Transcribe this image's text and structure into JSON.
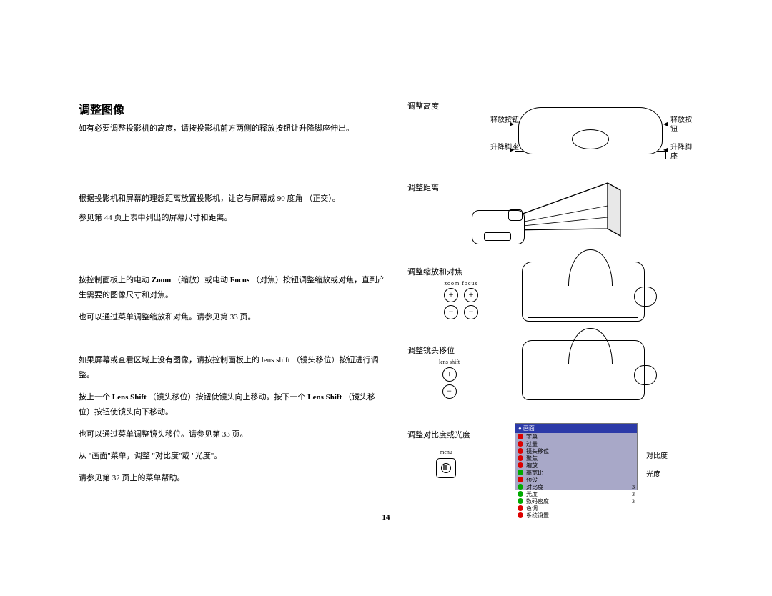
{
  "heading": "调整图像",
  "left": {
    "p1": "如有必要调整投影机的高度，请按投影机前方两侧的释放按钮让升降脚座伸出。",
    "p2a": "根据投影机和屏幕的理想距离放置投影机，让它与屏幕成 90 度角 （正交）。",
    "p2b": "参见第 44 页上表中列出的屏幕尺寸和距离。",
    "p3a_pre": "按控制面板上的电动 ",
    "p3a_b1": "Zoom",
    "p3a_mid1": " （缩放）或电动 ",
    "p3a_b2": "Focus",
    "p3a_post": " （对焦）按钮调整缩放或对焦，直到产生需要的图像尺寸和对焦。",
    "p3b": "也可以通过菜单调整缩放和对焦。请参见第 33 页。",
    "p4a": "如果屏幕或查看区域上没有图像，请按控制面板上的 lens shift （镜头移位）按钮进行调整。",
    "p4b_pre": "按上一个 ",
    "p4b_b1": "Lens Shift",
    "p4b_mid": " （镜头移位）按钮使镜头向上移动。按下一个 ",
    "p4b_b2": "Lens Shift",
    "p4b_post": " （镜头移位）按钮使镜头向下移动。",
    "p4c": "也可以通过菜单调整镜头移位。请参见第 33 页。",
    "p5a": "从 \"画面\"菜单，调整 \"对比度\"或 \"光度\"。",
    "p5b": "请参见第 32 页上的菜单帮助。"
  },
  "right": {
    "cap1": "调整高度",
    "lbl_release": "释放按钮",
    "lbl_foot": "升降脚座",
    "cap2": "调整距离",
    "cap3": "调整缩放和对焦",
    "zoom_focus_label": "zoom  focus",
    "cap4": "调整镜头移位",
    "lensshift_label": "lens shift",
    "cap5": "调整对比度或光度",
    "menu_label": "menu",
    "osd_title": "●  画面",
    "osd_items": [
      "字幕",
      "过量",
      "镜头移位",
      "聚焦",
      "缩放",
      "高宽比",
      "预设",
      "对比度",
      "光度",
      "数码密度",
      "色调",
      "系统设置"
    ],
    "osd_vals": [
      "",
      "",
      "",
      "",
      "",
      "",
      "",
      "3",
      "3",
      "3",
      "",
      ""
    ],
    "osd_icon_colors": [
      "#d00",
      "#d00",
      "#d00",
      "#d00",
      "#d00",
      "#0a0",
      "#d00",
      "#0a0",
      "#0a0",
      "#0a0",
      "#d00",
      "#d00"
    ],
    "lbl_contrast": "对比度",
    "lbl_brightness": "光度"
  },
  "page_number": "14",
  "colors": {
    "menu_hdr": "#2c3aa8",
    "menu_bg": "#a8a8c8"
  }
}
